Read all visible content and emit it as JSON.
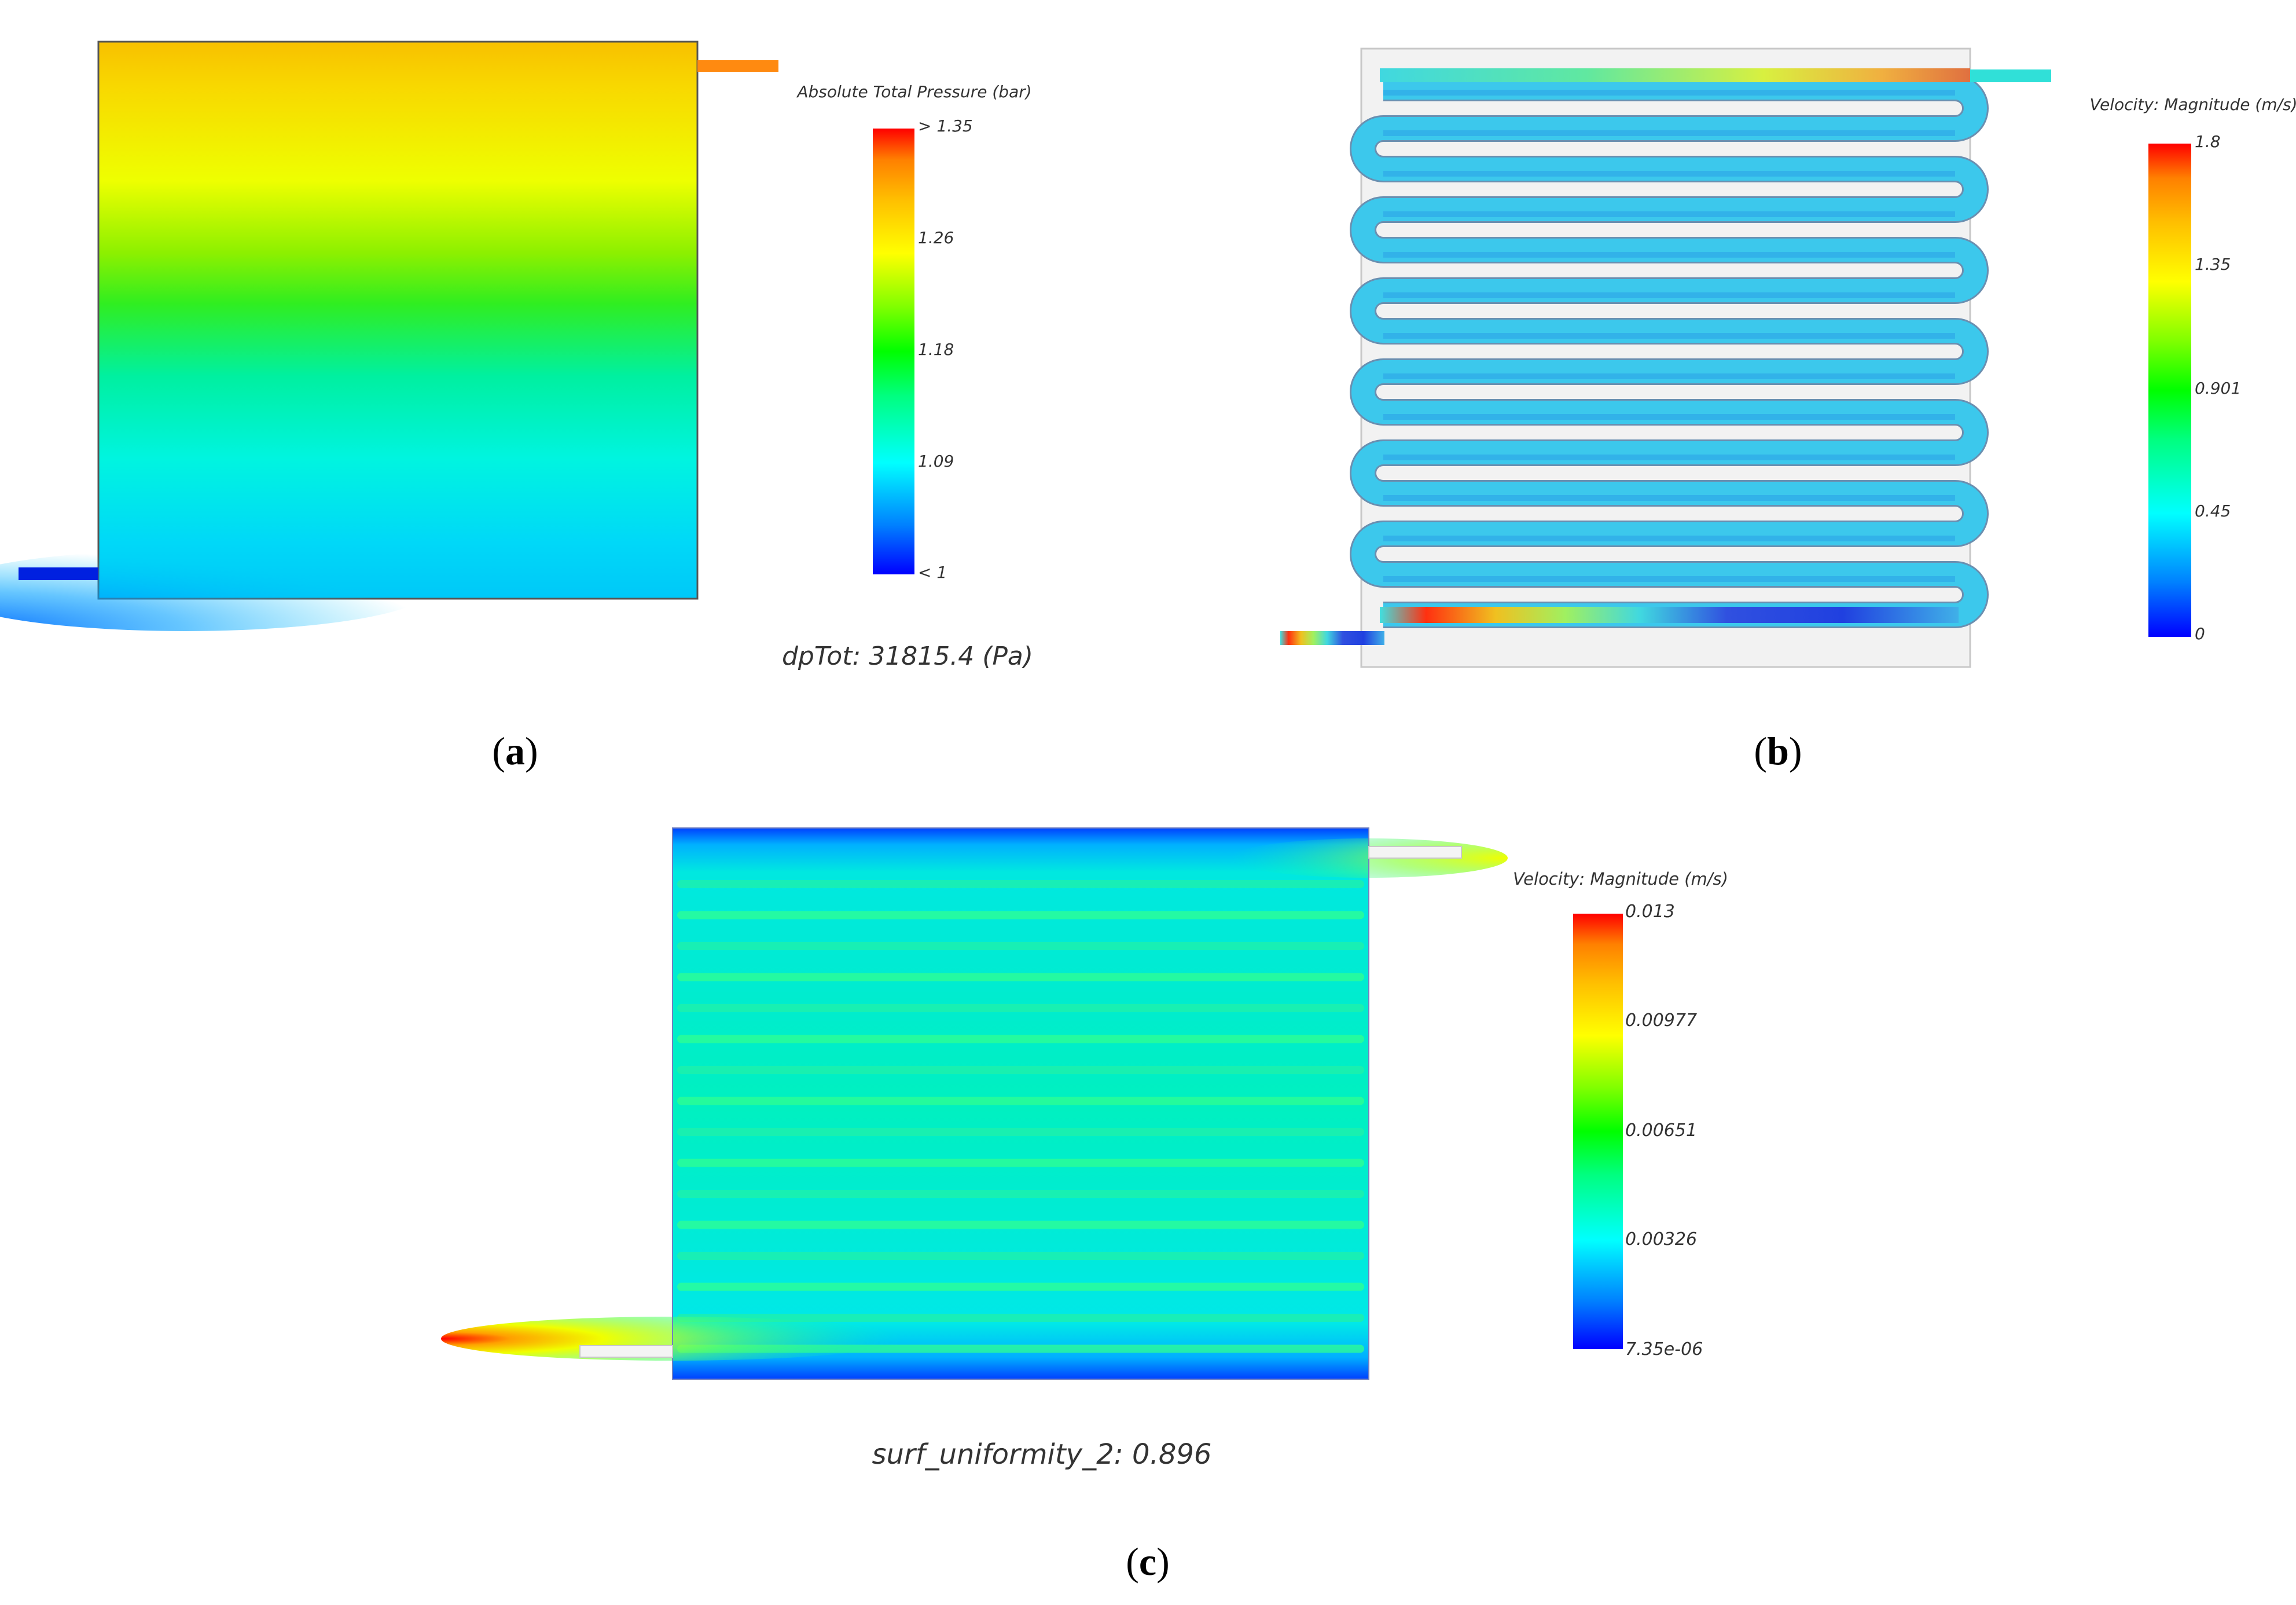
{
  "panels": {
    "a": {
      "caption_letter": "a",
      "legend_title": "Absolute Total Pressure (bar)",
      "legend_ticks": [
        "> 1.35",
        "1.26",
        "1.18",
        "1.09",
        "< 1"
      ],
      "footer_text": "dpTot: 31815.4 (Pa)"
    },
    "b": {
      "caption_letter": "b",
      "legend_title": "Velocity: Magnitude (m/s)",
      "legend_ticks": [
        "1.8",
        "1.35",
        "0.901",
        "0.45",
        "0"
      ]
    },
    "c": {
      "caption_letter": "c",
      "legend_title": "Velocity: Magnitude (m/s)",
      "legend_ticks": [
        "0.013",
        "0.00977",
        "0.00651",
        "0.00326",
        "7.35e-06"
      ],
      "footer_text": "surf_uniformity_2:  0.896"
    }
  },
  "colormap": [
    "#0000ff",
    "#0080ff",
    "#00ffff",
    "#00ff80",
    "#00ff00",
    "#80ff00",
    "#ffff00",
    "#ffbf00",
    "#ff8000",
    "#ff0000"
  ]
}
